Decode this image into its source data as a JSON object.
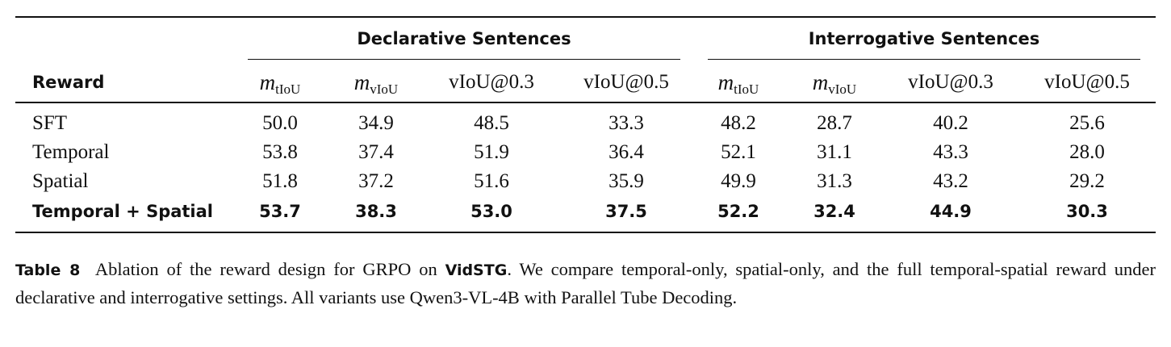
{
  "table": {
    "groups": [
      "Declarative Sentences",
      "Interrogative Sentences"
    ],
    "header": [
      "Reward",
      {
        "base": "m",
        "sub": "tIoU"
      },
      {
        "base": "m",
        "sub": "vIoU"
      },
      "vIoU@0.3",
      "vIoU@0.5",
      {
        "base": "m",
        "sub": "tIoU"
      },
      {
        "base": "m",
        "sub": "vIoU"
      },
      "vIoU@0.3",
      "vIoU@0.5"
    ],
    "rows": [
      [
        "SFT",
        "50.0",
        "34.9",
        "48.5",
        "33.3",
        "48.2",
        "28.7",
        "40.2",
        "25.6"
      ],
      [
        "Temporal",
        "53.8",
        "37.4",
        "51.9",
        "36.4",
        "52.1",
        "31.1",
        "43.3",
        "28.0"
      ],
      [
        "Spatial",
        "51.8",
        "37.2",
        "51.6",
        "35.9",
        "49.9",
        "31.3",
        "43.2",
        "29.2"
      ],
      [
        "Temporal + Spatial",
        "53.7",
        "38.3",
        "53.0",
        "37.5",
        "52.2",
        "32.4",
        "44.9",
        "30.3"
      ]
    ]
  },
  "caption": {
    "label": "Table 8",
    "parts": [
      "Ablation of the reward design for GRPO on ",
      "VidSTG",
      ". We compare temporal-only, spatial-only, and the full temporal-spatial reward under declarative and interrogative settings.  All variants use Qwen3-VL-4B with Parallel Tube Decoding."
    ]
  }
}
